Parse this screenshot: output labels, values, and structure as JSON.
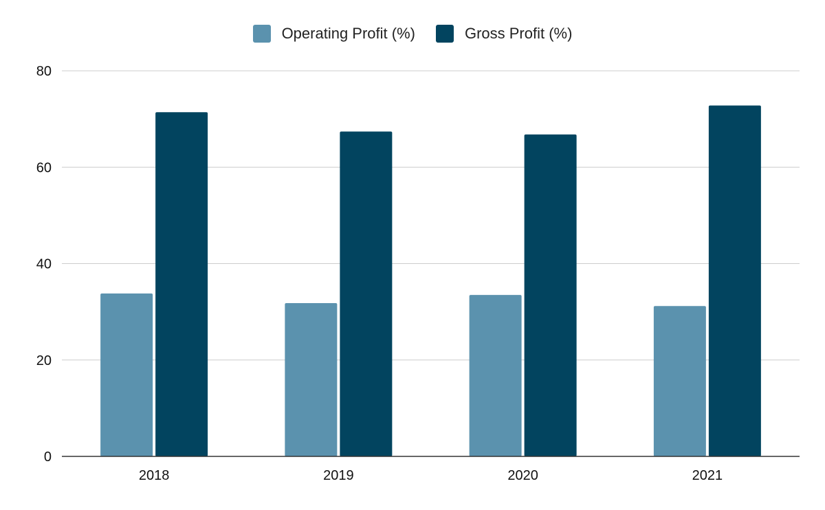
{
  "chart_data": {
    "type": "bar",
    "categories": [
      "2018",
      "2019",
      "2020",
      "2021"
    ],
    "series": [
      {
        "name": "Operating Profit (%)",
        "values": [
          33.8,
          31.8,
          33.5,
          31.2
        ],
        "color": "#5b92ae"
      },
      {
        "name": "Gross Profit (%)",
        "values": [
          71.4,
          67.4,
          66.8,
          72.8
        ],
        "color": "#02445f"
      }
    ],
    "ylim": [
      0,
      80
    ],
    "yticks": [
      0,
      20,
      40,
      60,
      80
    ],
    "grid": true,
    "legend_position": "top-center"
  }
}
